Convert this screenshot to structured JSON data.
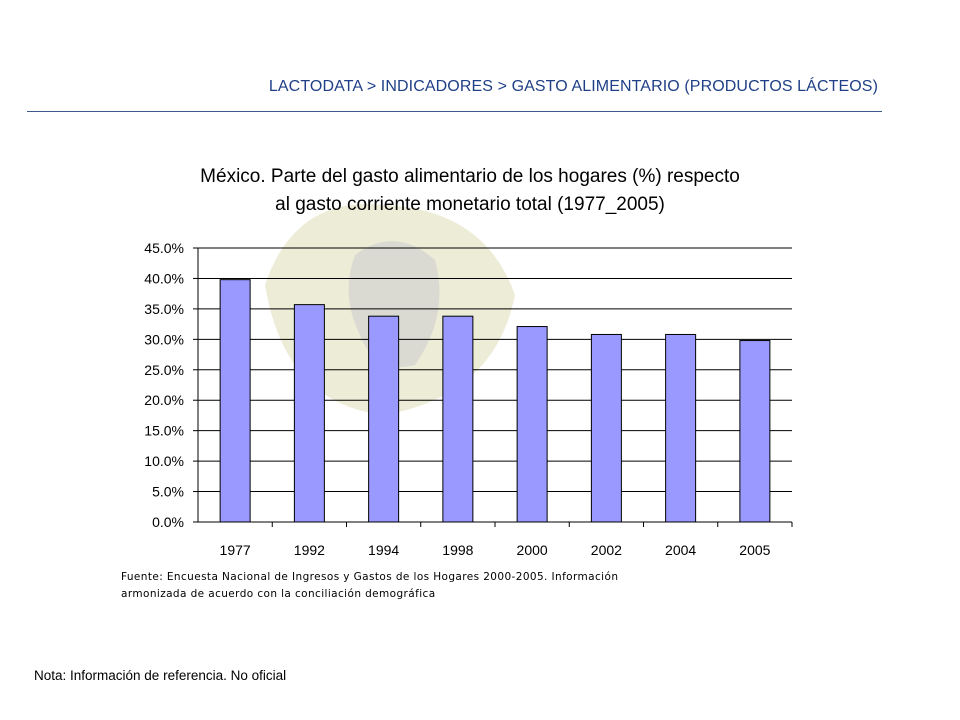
{
  "header": {
    "breadcrumb": "LACTODATA > INDICADORES > GASTO ALIMENTARIO (PRODUCTOS LÁCTEOS)"
  },
  "chart_data": {
    "type": "bar",
    "title_line1": "México. Parte del gasto alimentario de los hogares (%) respecto",
    "title_line2": "al gasto corriente monetario total (1977_2005)",
    "categories": [
      "1977",
      "1992",
      "1994",
      "1998",
      "2000",
      "2002",
      "2004",
      "2005"
    ],
    "values": [
      39.8,
      35.7,
      33.8,
      33.8,
      32.1,
      30.8,
      30.8,
      29.8
    ],
    "y_ticks": [
      "0.0%",
      "5.0%",
      "10.0%",
      "15.0%",
      "20.0%",
      "25.0%",
      "30.0%",
      "35.0%",
      "40.0%",
      "45.0%"
    ],
    "ylim": [
      0,
      45
    ],
    "grid": true,
    "legend": "none",
    "bar_color": "#9999ff",
    "bar_border_color": "#000000",
    "source_line1": "Fuente: Encuesta Nacional de Ingresos y Gastos de los Hogares 2000-2005. Información",
    "source_line2": "armonizada de acuerdo con la conciliación demográfica"
  },
  "footer": {
    "note": "Nota: Información de referencia. No oficial"
  },
  "colors": {
    "header_text": "#1f3f86",
    "header_rule": "#3a5a8c"
  }
}
